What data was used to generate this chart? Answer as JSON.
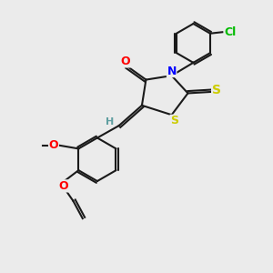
{
  "bg_color": "#ebebeb",
  "bond_color": "#1a1a1a",
  "atom_colors": {
    "O": "#ff0000",
    "N": "#0000ff",
    "S_yellow": "#cccc00",
    "S_ring": "#cccc00",
    "Cl": "#00bb00",
    "H": "#5f9ea0"
  },
  "font_size": 9,
  "lw": 1.5
}
